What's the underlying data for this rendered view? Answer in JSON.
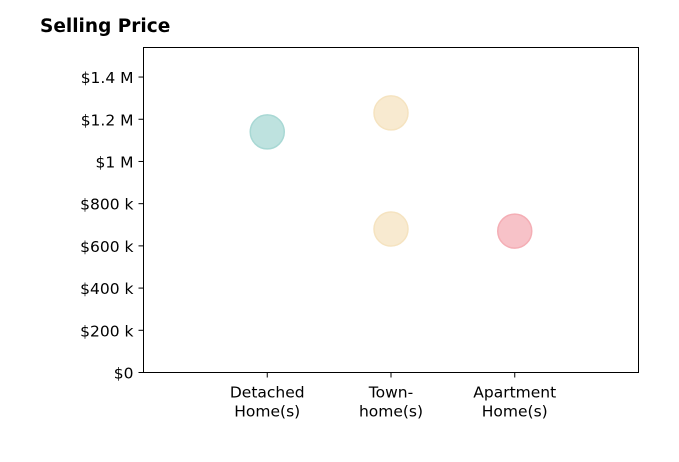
{
  "chart_data": {
    "type": "scatter",
    "title": "Selling Price",
    "xlabel": "",
    "ylabel": "",
    "categories": [
      [
        "Detached",
        "Home(s)"
      ],
      [
        "Town-",
        "home(s)"
      ],
      [
        "Apartment",
        "Home(s)"
      ]
    ],
    "y_ticks": [
      {
        "value": 0,
        "label": "$0"
      },
      {
        "value": 200000,
        "label": "$200 k"
      },
      {
        "value": 400000,
        "label": "$400 k"
      },
      {
        "value": 600000,
        "label": "$600 k"
      },
      {
        "value": 800000,
        "label": "$800 k"
      },
      {
        "value": 1000000,
        "label": "$1 M"
      },
      {
        "value": 1200000,
        "label": "$1.2 M"
      },
      {
        "value": 1400000,
        "label": "$1.4 M"
      }
    ],
    "ylim": [
      0,
      1540000
    ],
    "xlim": [
      0,
      4
    ],
    "grid": false,
    "points": [
      {
        "category": "Detached Home(s)",
        "x": 1,
        "y": 1140000,
        "color": "#a8d8d4"
      },
      {
        "category": "Town-home(s)",
        "x": 2,
        "y": 1230000,
        "color": "#f5e3c0"
      },
      {
        "category": "Town-home(s)",
        "x": 2,
        "y": 680000,
        "color": "#f5e3c0"
      },
      {
        "category": "Apartment Home(s)",
        "x": 3,
        "y": 670000,
        "color": "#f4aeb5"
      }
    ]
  }
}
